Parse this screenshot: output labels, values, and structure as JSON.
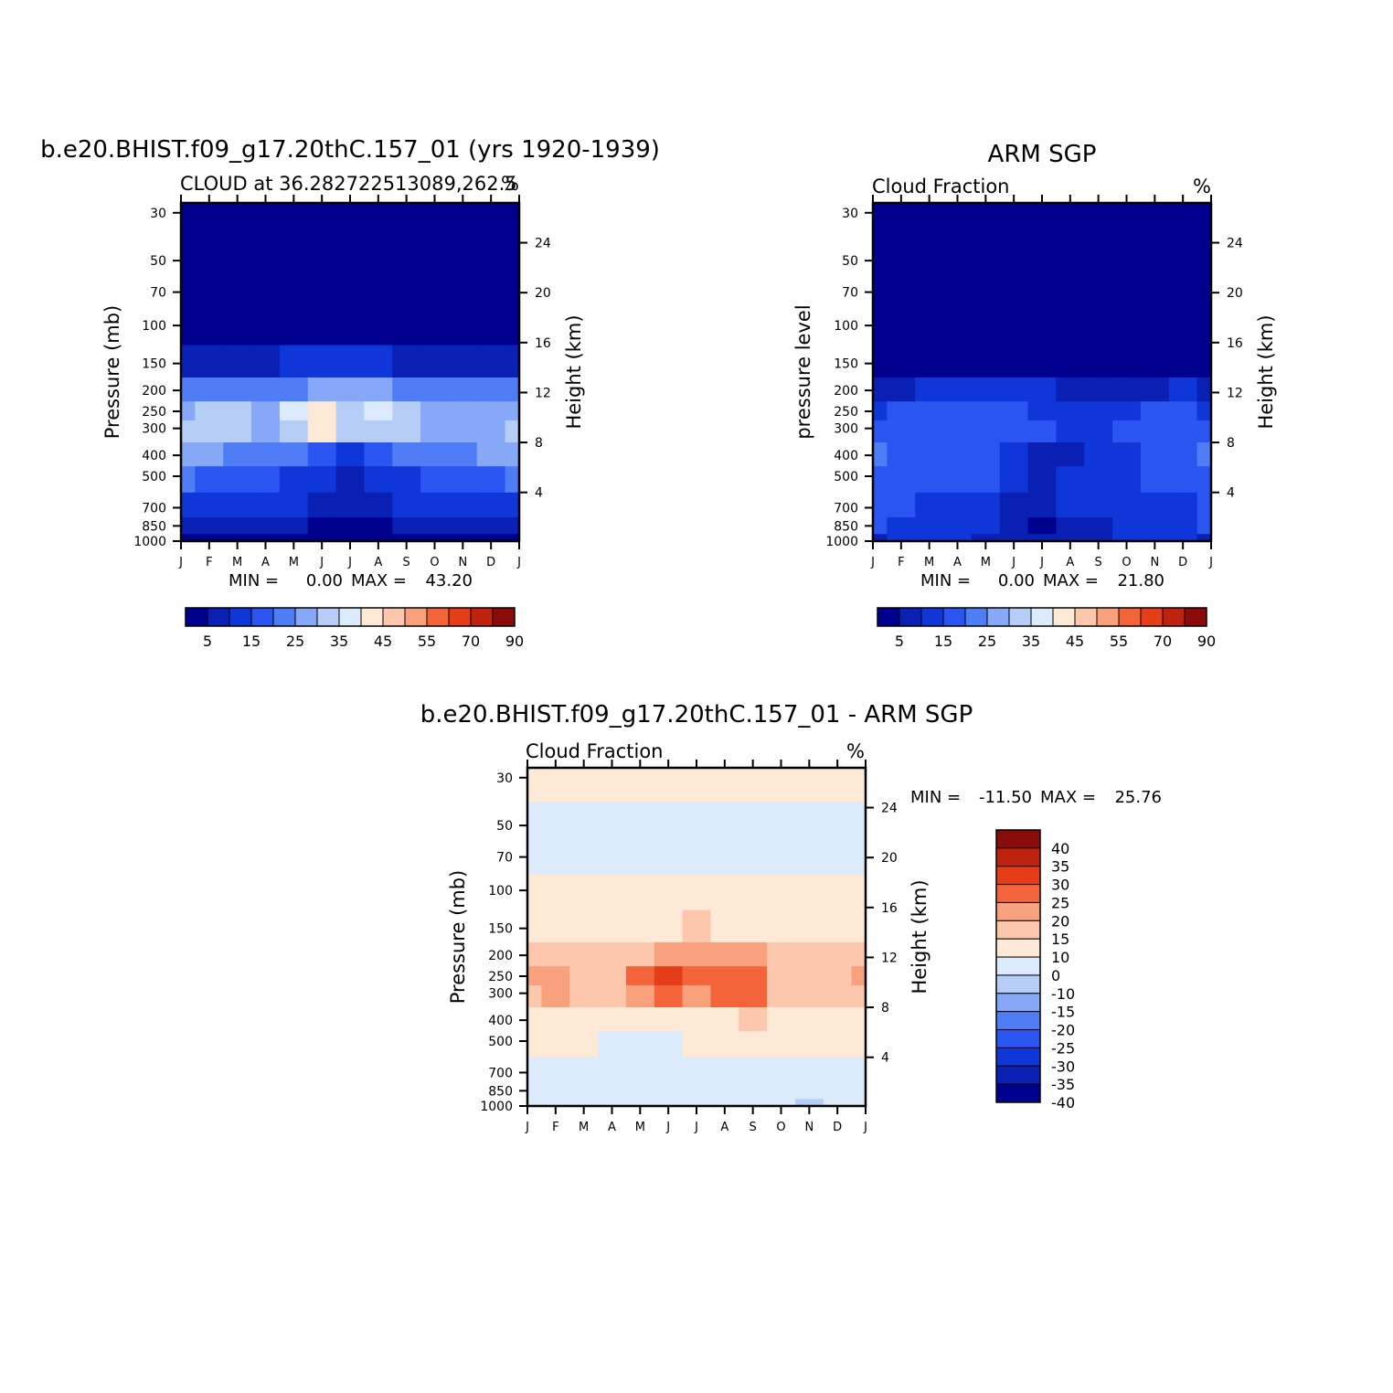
{
  "panels": [
    {
      "id": "model",
      "title": "b.e20.BHIST.f09_g17.20thC.157_01 (yrs 1920-1939)",
      "subtitle_left": "CLOUD at 36.282722513089,262.5",
      "subtitle_right": "%",
      "ylabel_left": "Pressure (mb)",
      "ylabel_right": "Height (km)",
      "pressure_ticks": [
        "30",
        "50",
        "70",
        "100",
        "150",
        "200",
        "250",
        "300",
        "400",
        "500",
        "700",
        "850",
        "1000"
      ],
      "height_ticks": [
        "24",
        "20",
        "16",
        "12",
        "8",
        "4"
      ],
      "months": [
        "J",
        "F",
        "M",
        "A",
        "M",
        "J",
        "J",
        "A",
        "S",
        "O",
        "N",
        "D",
        "J"
      ],
      "min_label": "MIN =",
      "min_value": "0.00",
      "max_label": "MAX =",
      "max_value": "43.20"
    },
    {
      "id": "obs",
      "title": "ARM SGP",
      "subtitle_left": "Cloud Fraction",
      "subtitle_right": "%",
      "ylabel_left": "pressure level",
      "ylabel_right": "Height (km)",
      "pressure_ticks": [
        "30",
        "50",
        "70",
        "100",
        "150",
        "200",
        "250",
        "300",
        "400",
        "500",
        "700",
        "850",
        "1000"
      ],
      "height_ticks": [
        "24",
        "20",
        "16",
        "12",
        "8",
        "4"
      ],
      "months": [
        "J",
        "F",
        "M",
        "A",
        "M",
        "J",
        "J",
        "A",
        "S",
        "O",
        "N",
        "D",
        "J"
      ],
      "min_label": "MIN =",
      "min_value": "0.00",
      "max_label": "MAX =",
      "max_value": "21.80"
    },
    {
      "id": "diff",
      "title": "b.e20.BHIST.f09_g17.20thC.157_01 - ARM SGP",
      "subtitle_left": "Cloud Fraction",
      "subtitle_right": "%",
      "ylabel_left": "Pressure (mb)",
      "ylabel_right": "Height (km)",
      "pressure_ticks": [
        "30",
        "50",
        "70",
        "100",
        "150",
        "200",
        "250",
        "300",
        "400",
        "500",
        "700",
        "850",
        "1000"
      ],
      "height_ticks": [
        "24",
        "20",
        "16",
        "12",
        "8",
        "4"
      ],
      "months": [
        "J",
        "F",
        "M",
        "A",
        "M",
        "J",
        "J",
        "A",
        "S",
        "O",
        "N",
        "D",
        "J"
      ],
      "min_label": "MIN =",
      "min_value": "-11.50",
      "max_label": "MAX =",
      "max_value": "25.76"
    }
  ],
  "colorbar_abs": {
    "colors": [
      "#00008e",
      "#0a1fb4",
      "#0f36d8",
      "#2b55f0",
      "#4f7df5",
      "#86a8f6",
      "#b6cdf8",
      "#dcebfb",
      "#fee8d6",
      "#fcc7ad",
      "#f9a07c",
      "#f4643a",
      "#e53d18",
      "#bf220e",
      "#8b0a0a"
    ],
    "labels": [
      "5",
      "15",
      "25",
      "35",
      "45",
      "55",
      "70",
      "90"
    ]
  },
  "colorbar_diff": {
    "colors": [
      "#00008e",
      "#0a1fb4",
      "#0f36d8",
      "#2b55f0",
      "#4f7df5",
      "#86a8f6",
      "#b6cdf8",
      "#dcebfb",
      "#fee8d6",
      "#fcc7ad",
      "#f9a07c",
      "#f4643a",
      "#e53d18",
      "#bf220e",
      "#8b0a0a"
    ],
    "labels": [
      "40",
      "35",
      "30",
      "25",
      "20",
      "15",
      "10",
      "0",
      "-10",
      "-15",
      "-20",
      "-25",
      "-30",
      "-35",
      "-40"
    ]
  },
  "chart_data": [
    {
      "type": "heatmap",
      "title": "b.e20.BHIST.f09_g17.20thC.157_01 (yrs 1920-1939)",
      "subtitle": "CLOUD at 36.282722513089,262.5",
      "units": "%",
      "xlabel": "",
      "ylabel": "Pressure (mb)",
      "ylabel_right": "Height (km)",
      "x": [
        "J",
        "F",
        "M",
        "A",
        "M",
        "J",
        "J",
        "A",
        "S",
        "O",
        "N",
        "D",
        "J"
      ],
      "y_pressure_mb": [
        1000,
        850,
        700,
        500,
        400,
        300,
        250,
        200,
        150,
        100,
        70,
        50,
        30
      ],
      "min": 0.0,
      "max": 43.2,
      "levels": [
        5,
        10,
        15,
        20,
        25,
        30,
        35,
        40,
        45,
        50,
        55,
        60,
        70,
        80,
        90
      ],
      "values": [
        [
          2,
          2,
          3,
          3,
          3,
          3,
          2,
          2,
          2,
          2,
          2,
          2,
          2
        ],
        [
          8,
          8,
          7,
          6,
          6,
          4,
          3,
          4,
          6,
          7,
          8,
          8,
          8
        ],
        [
          14,
          13,
          12,
          11,
          10,
          7,
          5,
          7,
          10,
          11,
          12,
          13,
          14
        ],
        [
          20,
          18,
          17,
          15,
          13,
          10,
          8,
          10,
          13,
          15,
          17,
          18,
          20
        ],
        [
          26,
          25,
          23,
          20,
          22,
          18,
          14,
          18,
          21,
          22,
          23,
          25,
          26
        ],
        [
          30,
          33,
          30,
          28,
          34,
          40,
          30,
          32,
          30,
          27,
          27,
          28,
          30
        ],
        [
          29,
          32,
          30,
          29,
          36,
          43,
          34,
          35,
          32,
          27,
          26,
          27,
          29
        ],
        [
          20,
          21,
          21,
          21,
          24,
          28,
          26,
          25,
          24,
          21,
          21,
          21,
          20
        ],
        [
          6,
          6,
          7,
          8,
          10,
          11,
          12,
          11,
          9,
          7,
          7,
          6,
          6
        ],
        [
          1,
          1,
          1,
          1,
          1,
          2,
          2,
          2,
          1,
          1,
          1,
          1,
          1
        ],
        [
          0,
          0,
          0,
          0,
          0,
          0,
          0,
          0,
          0,
          0,
          0,
          0,
          0
        ],
        [
          0,
          0,
          0,
          0,
          0,
          0,
          0,
          0,
          0,
          0,
          0,
          0,
          0
        ],
        [
          0,
          0,
          0,
          0,
          0,
          0,
          0,
          0,
          0,
          0,
          0,
          0,
          0
        ]
      ]
    },
    {
      "type": "heatmap",
      "title": "ARM SGP",
      "subtitle": "Cloud Fraction",
      "units": "%",
      "xlabel": "",
      "ylabel": "pressure level",
      "ylabel_right": "Height (km)",
      "x": [
        "J",
        "F",
        "M",
        "A",
        "M",
        "J",
        "J",
        "A",
        "S",
        "O",
        "N",
        "D",
        "J"
      ],
      "y_pressure_mb": [
        1000,
        850,
        700,
        500,
        400,
        300,
        250,
        200,
        150,
        100,
        70,
        50,
        30
      ],
      "min": 0.0,
      "max": 21.8,
      "levels": [
        5,
        10,
        15,
        20,
        25,
        30,
        35,
        40,
        45,
        50,
        55,
        60,
        70,
        80,
        90
      ],
      "values": [
        [
          8,
          12,
          11,
          10,
          9,
          8,
          7,
          6,
          6,
          10,
          14,
          10,
          8
        ],
        [
          15,
          12,
          12,
          11,
          10,
          7,
          4,
          7,
          9,
          12,
          12,
          11,
          15
        ],
        [
          16,
          15,
          14,
          14,
          11,
          9,
          8,
          10,
          12,
          14,
          14,
          14,
          16
        ],
        [
          18,
          16,
          17,
          16,
          16,
          12,
          8,
          10,
          12,
          14,
          15,
          17,
          18
        ],
        [
          21,
          18,
          17,
          17,
          17,
          14,
          9,
          9,
          11,
          13,
          15,
          18,
          21
        ],
        [
          17,
          18,
          18,
          17,
          18,
          17,
          15,
          10,
          10,
          15,
          16,
          18,
          17
        ],
        [
          14,
          15,
          16,
          16,
          16,
          16,
          14,
          12,
          12,
          14,
          15,
          17,
          14
        ],
        [
          8,
          9,
          10,
          11,
          10,
          10,
          10,
          9,
          7,
          8,
          9,
          10,
          8
        ],
        [
          2,
          2,
          3,
          3,
          2,
          2,
          2,
          2,
          2,
          2,
          2,
          2,
          2
        ],
        [
          0,
          0,
          0,
          0,
          0,
          0,
          0,
          0,
          0,
          0,
          0,
          0,
          0
        ],
        [
          0,
          0,
          0,
          0,
          0,
          0,
          0,
          0,
          0,
          0,
          0,
          0,
          0
        ],
        [
          0,
          0,
          0,
          0,
          0,
          0,
          0,
          0,
          0,
          0,
          0,
          0,
          0
        ],
        [
          0,
          0,
          0,
          0,
          0,
          0,
          0,
          0,
          0,
          0,
          0,
          0,
          0
        ]
      ]
    },
    {
      "type": "heatmap",
      "title": "b.e20.BHIST.f09_g17.20thC.157_01 - ARM SGP",
      "subtitle": "Cloud Fraction",
      "units": "%",
      "xlabel": "",
      "ylabel": "Pressure (mb)",
      "ylabel_right": "Height (km)",
      "x": [
        "J",
        "F",
        "M",
        "A",
        "M",
        "J",
        "J",
        "A",
        "S",
        "O",
        "N",
        "D",
        "J"
      ],
      "y_pressure_mb": [
        1000,
        850,
        700,
        500,
        400,
        300,
        250,
        200,
        150,
        100,
        70,
        50,
        30
      ],
      "min": -11.5,
      "max": 25.76,
      "levels": [
        -40,
        -35,
        -30,
        -25,
        -20,
        -15,
        -10,
        0,
        10,
        15,
        20,
        25,
        30,
        35,
        40
      ],
      "values": [
        [
          -6,
          -10,
          -8,
          -7,
          -6,
          -5,
          -5,
          -4,
          -4,
          -8,
          -12,
          -8,
          -6
        ],
        [
          -7,
          -4,
          -5,
          -5,
          -4,
          -3,
          -1,
          -3,
          -3,
          -5,
          -4,
          -3,
          -7
        ],
        [
          -2,
          -2,
          -2,
          -3,
          -1,
          -2,
          -3,
          -3,
          -2,
          -3,
          -2,
          -1,
          -2
        ],
        [
          2,
          2,
          0,
          -1,
          -3,
          -2,
          0,
          0,
          1,
          1,
          2,
          1,
          2
        ],
        [
          5,
          7,
          6,
          3,
          5,
          4,
          5,
          9,
          10,
          9,
          8,
          7,
          5
        ],
        [
          13,
          15,
          12,
          11,
          16,
          23,
          15,
          22,
          20,
          12,
          11,
          10,
          13
        ],
        [
          15,
          17,
          14,
          13,
          20,
          25,
          20,
          23,
          20,
          13,
          11,
          10,
          15
        ],
        [
          12,
          12,
          11,
          10,
          14,
          18,
          16,
          16,
          17,
          13,
          12,
          11,
          12
        ],
        [
          4,
          4,
          4,
          5,
          8,
          9,
          10,
          9,
          7,
          5,
          5,
          4,
          4
        ],
        [
          1,
          1,
          1,
          1,
          1,
          2,
          2,
          2,
          1,
          1,
          1,
          1,
          1
        ],
        [
          -1,
          -1,
          -1,
          -1,
          -1,
          -1,
          -1,
          -1,
          -1,
          -1,
          -1,
          -1,
          -1
        ],
        [
          -1,
          -1,
          -1,
          -1,
          -1,
          -1,
          -1,
          -1,
          -1,
          -1,
          -1,
          -1,
          -1
        ],
        [
          1,
          1,
          1,
          1,
          1,
          1,
          1,
          1,
          1,
          1,
          1,
          1,
          1
        ]
      ]
    }
  ]
}
